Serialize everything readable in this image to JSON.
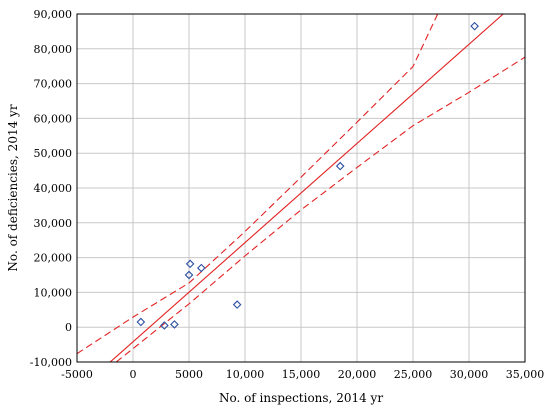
{
  "chart_data": {
    "type": "scatter",
    "title": "",
    "xlabel": "No. of inspections, 2014 yr",
    "ylabel": "No. of deficiencies, 2014 yr",
    "xlim": [
      -5000,
      35000
    ],
    "ylim": [
      -10000,
      90000
    ],
    "xticks": [
      -5000,
      0,
      5000,
      10000,
      15000,
      20000,
      25000,
      30000,
      35000
    ],
    "xtick_labels": [
      "-5000",
      "0",
      "5000",
      "10,000",
      "15,000",
      "20,000",
      "25,000",
      "30,000",
      "35,000"
    ],
    "yticks": [
      -10000,
      0,
      10000,
      20000,
      30000,
      40000,
      50000,
      60000,
      70000,
      80000,
      90000
    ],
    "ytick_labels": [
      "-10,000",
      "0",
      "10,000",
      "20,000",
      "30,000",
      "40,000",
      "50,000",
      "60,000",
      "70,000",
      "80,000",
      "90,000"
    ],
    "grid": true,
    "points": [
      {
        "x": 700,
        "y": 1500
      },
      {
        "x": 2800,
        "y": 500
      },
      {
        "x": 3700,
        "y": 800
      },
      {
        "x": 5000,
        "y": 15000
      },
      {
        "x": 5100,
        "y": 18200
      },
      {
        "x": 6100,
        "y": 17000
      },
      {
        "x": 9300,
        "y": 6500
      },
      {
        "x": 18500,
        "y": 46300
      },
      {
        "x": 30500,
        "y": 86500
      }
    ],
    "fit_line": {
      "slope": 2.85,
      "intercept": -4200
    },
    "confidence_band": {
      "upper": [
        [
          -5000,
          -7600
        ],
        [
          0,
          2900
        ],
        [
          5000,
          12700
        ],
        [
          10000,
          27500
        ],
        [
          15000,
          43100
        ],
        [
          20000,
          58900
        ],
        [
          25000,
          74900
        ],
        [
          27200,
          90000
        ]
      ],
      "lower": [
        [
          -1500,
          -10000
        ],
        [
          5000,
          6700
        ],
        [
          10000,
          20500
        ],
        [
          15000,
          33700
        ],
        [
          20000,
          45900
        ],
        [
          25000,
          57900
        ],
        [
          30000,
          67500
        ],
        [
          35000,
          77600
        ]
      ]
    },
    "colors": {
      "points": "#2b4ea2",
      "fit_line": "#e32222",
      "confidence_band": "#e32222",
      "grid": "#c8c8c8",
      "axes": "#000000"
    }
  }
}
